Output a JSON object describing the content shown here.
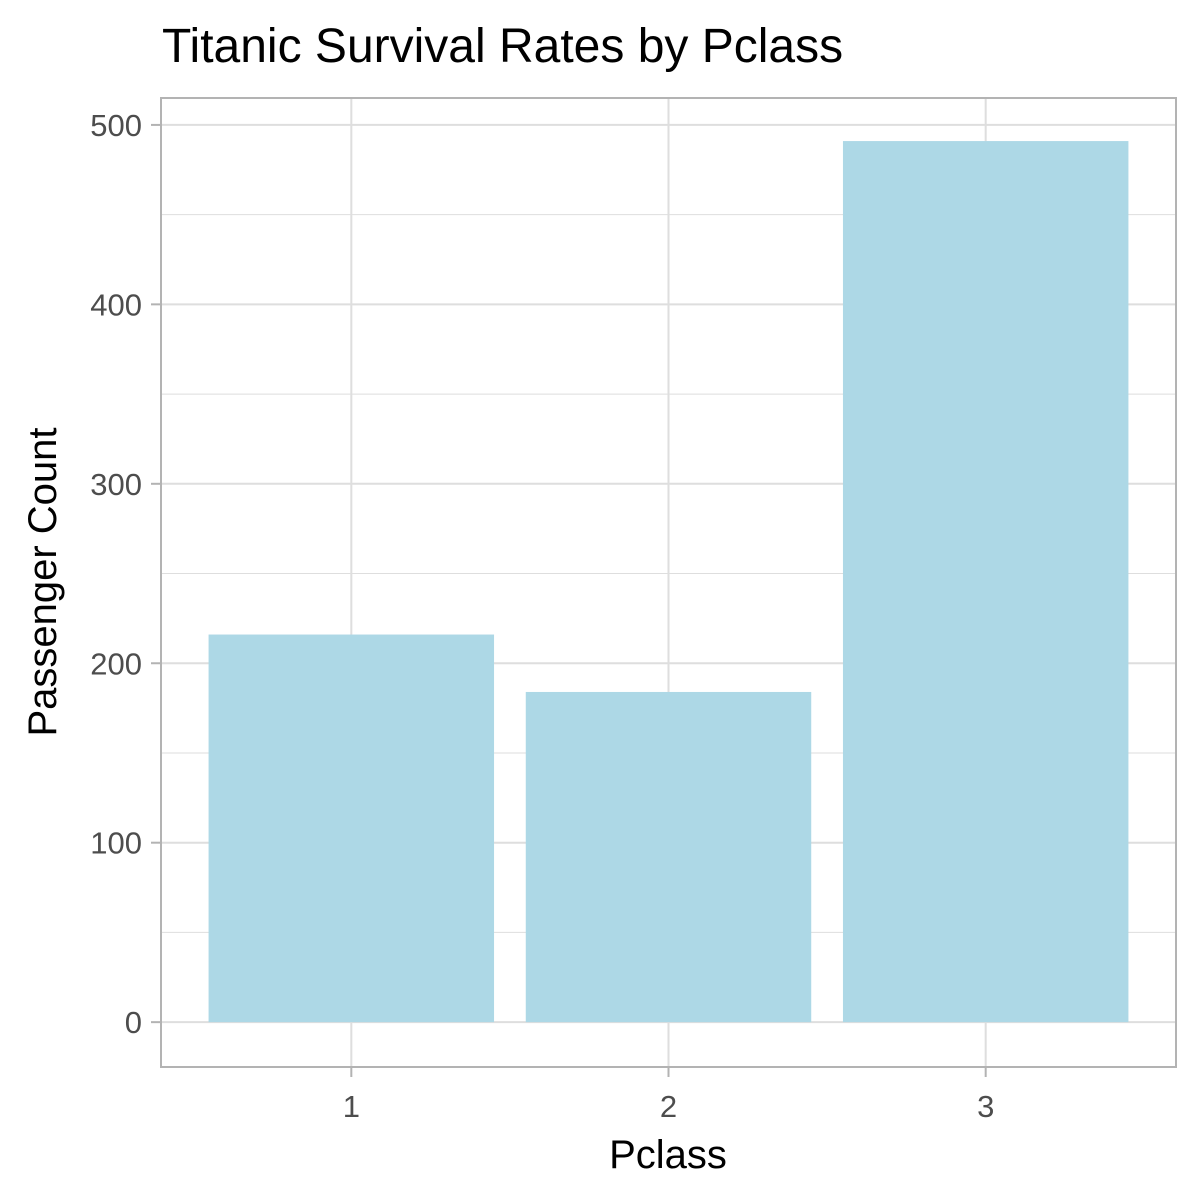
{
  "chart_data": {
    "type": "bar",
    "title": "Titanic Survival Rates by Pclass",
    "xlabel": "Pclass",
    "ylabel": "Passenger Count",
    "categories": [
      "1",
      "2",
      "3"
    ],
    "values": [
      216,
      184,
      491
    ],
    "ylim": [
      -25,
      515
    ],
    "yticks": [
      0,
      100,
      200,
      300,
      400,
      500
    ],
    "grid": true,
    "legend": "none",
    "colors": {
      "bar": "#add8e6",
      "grid": "#dedede",
      "panel_border": "#b3b3b3",
      "tick": "#b3b3b3",
      "tick_label": "#4d4d4d",
      "text": "#000000"
    }
  }
}
